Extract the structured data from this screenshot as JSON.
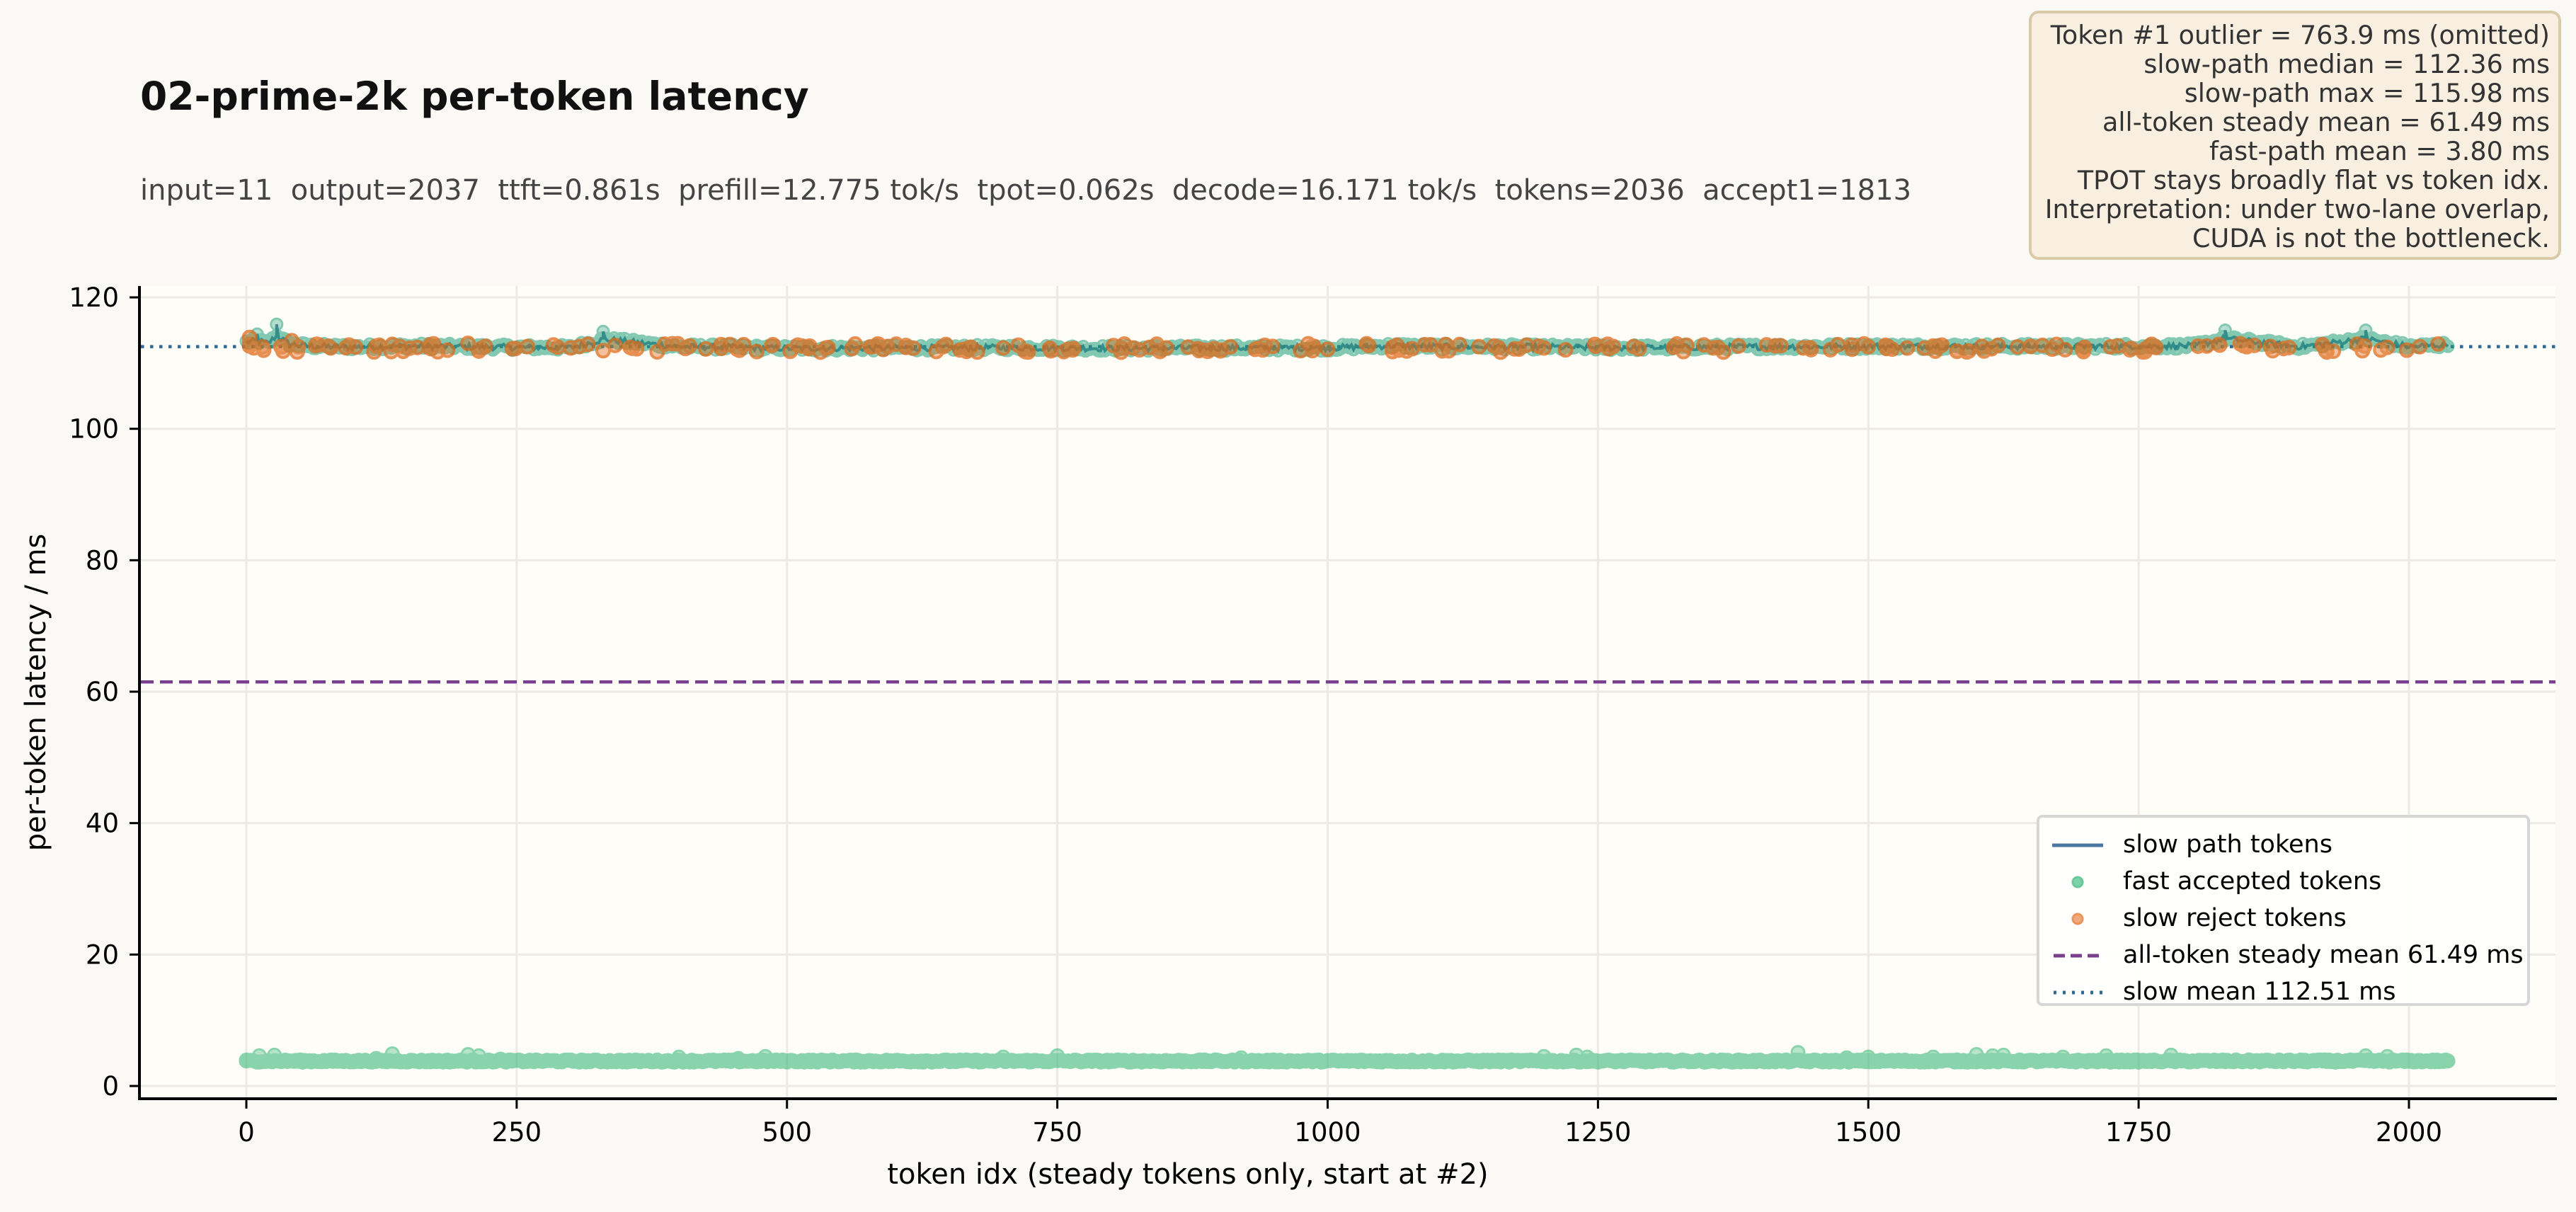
{
  "header": {
    "title": "02-prime-2k per-token latency",
    "subtitle": "input=11  output=2037  ttft=0.861s  prefill=12.775 tok/s  tpot=0.062s  decode=16.171 tok/s  tokens=2036  accept1=1813"
  },
  "annotation": {
    "lines": [
      "Token #1 outlier = 763.9 ms (omitted)",
      "slow-path median = 112.36 ms",
      "slow-path max = 115.98 ms",
      "all-token steady mean = 61.49 ms",
      "fast-path mean = 3.80 ms",
      "TPOT stays broadly flat vs token idx.",
      "Interpretation: under two-lane overlap,",
      "CUDA is not the bottleneck."
    ]
  },
  "legend": {
    "items": [
      {
        "label": "slow path tokens",
        "symbol": "line",
        "color": "#4a76a0"
      },
      {
        "label": "fast accepted tokens",
        "symbol": "dot",
        "color": "#66cc99"
      },
      {
        "label": "slow reject tokens",
        "symbol": "dot",
        "color": "#e8894a"
      },
      {
        "label": "all-token steady mean 61.49 ms",
        "symbol": "dashed",
        "color": "#7b3f8f"
      },
      {
        "label": "slow mean 112.51 ms",
        "symbol": "dotted",
        "color": "#2e6a96"
      }
    ]
  },
  "colors": {
    "background": "#faf9f5",
    "plot_bg": "#fefdf8",
    "grid": "#ebeae6",
    "slow_line": "#3d6d96",
    "slow_accept_dot": "#1f9e78",
    "slow_reject_dot": "#e06a1a",
    "fast_dot": "#3db97a",
    "mean_all": "#7b3f8f",
    "mean_slow": "#2e6a96"
  },
  "chart_data": {
    "type": "scatter",
    "title": "02-prime-2k per-token latency",
    "xlabel": "token idx (steady tokens only, start at #2)",
    "ylabel": "per-token latency / ms",
    "xlim": [
      -100,
      2140
    ],
    "ylim": [
      -2,
      122
    ],
    "xticks": [
      0,
      250,
      500,
      750,
      1000,
      1250,
      1500,
      1750,
      2000
    ],
    "yticks": [
      0,
      20,
      40,
      60,
      80,
      100,
      120
    ],
    "grid": true,
    "legend_position": "lower right",
    "n_tokens": 2036,
    "hlines": [
      {
        "name": "all-token steady mean 61.49 ms",
        "y": 61.49,
        "style": "dashed"
      },
      {
        "name": "slow mean 112.51 ms",
        "y": 112.51,
        "style": "dotted"
      }
    ],
    "series": [
      {
        "name": "slow path tokens",
        "kind": "line+markers",
        "approx_count": 1813,
        "median": 112.36,
        "max": 115.98,
        "mean": 112.51,
        "x": [
          0,
          10,
          20,
          28,
          40,
          60,
          100,
          150,
          200,
          250,
          300,
          330,
          400,
          450,
          500,
          600,
          700,
          800,
          900,
          1000,
          1060,
          1100,
          1200,
          1250,
          1300,
          1400,
          1500,
          1600,
          1700,
          1800,
          1830,
          1900,
          1960,
          2000,
          2036
        ],
        "values": [
          114.0,
          114.4,
          113.6,
          115.9,
          113.4,
          112.7,
          112.5,
          112.8,
          112.6,
          112.4,
          112.3,
          114.8,
          112.6,
          112.4,
          112.1,
          112.2,
          112.3,
          112.1,
          112.2,
          112.2,
          112.9,
          112.6,
          112.5,
          112.3,
          112.3,
          112.6,
          112.7,
          112.7,
          112.7,
          112.8,
          115.0,
          112.6,
          115.0,
          112.6,
          113.2
        ]
      },
      {
        "name": "slow reject tokens",
        "kind": "markers",
        "approx_count": 223,
        "x": [
          3,
          42,
          78,
          120,
          170,
          205,
          260,
          300,
          355,
          410,
          460,
          520,
          560,
          610,
          660,
          700,
          760,
          820,
          880,
          940,
          1000,
          1060,
          1090,
          1140,
          1200,
          1260,
          1320,
          1380,
          1440,
          1500,
          1560,
          1620,
          1700,
          1760,
          1850,
          1920,
          1980,
          2010
        ],
        "values": [
          113.9,
          113.4,
          112.3,
          112.6,
          112.8,
          113.0,
          112.5,
          112.3,
          112.4,
          112.6,
          112.8,
          112.2,
          112.2,
          112.4,
          112.0,
          112.3,
          112.1,
          112.3,
          112.2,
          112.0,
          112.1,
          112.4,
          112.8,
          112.5,
          112.3,
          112.2,
          112.4,
          112.6,
          112.3,
          112.5,
          112.6,
          112.7,
          112.4,
          112.6,
          112.5,
          112.7,
          112.4,
          112.5
        ]
      },
      {
        "name": "fast accepted tokens",
        "kind": "markers",
        "approx_count": 1813,
        "mean": 3.8,
        "x": [
          0,
          12,
          26,
          100,
          120,
          135,
          205,
          215,
          235,
          400,
          455,
          480,
          700,
          750,
          900,
          920,
          1200,
          1230,
          1240,
          1435,
          1480,
          1500,
          1560,
          1600,
          1615,
          1625,
          1680,
          1720,
          1780,
          1960,
          1980,
          2036
        ],
        "values": [
          3.8,
          4.6,
          4.7,
          3.8,
          4.2,
          4.9,
          4.8,
          4.6,
          4.1,
          4.4,
          4.2,
          4.5,
          4.4,
          4.6,
          3.8,
          4.3,
          4.5,
          4.7,
          4.4,
          5.1,
          4.3,
          4.4,
          4.4,
          4.8,
          4.6,
          4.7,
          4.4,
          4.6,
          4.7,
          4.6,
          4.5,
          3.8
        ]
      }
    ]
  },
  "axes": {
    "xlabel": "token idx (steady tokens only, start at #2)",
    "ylabel": "per-token latency / ms",
    "xtick_labels": [
      "0",
      "250",
      "500",
      "750",
      "1000",
      "1250",
      "1500",
      "1750",
      "2000"
    ],
    "ytick_labels": [
      "0",
      "20",
      "40",
      "60",
      "80",
      "100",
      "120"
    ]
  }
}
